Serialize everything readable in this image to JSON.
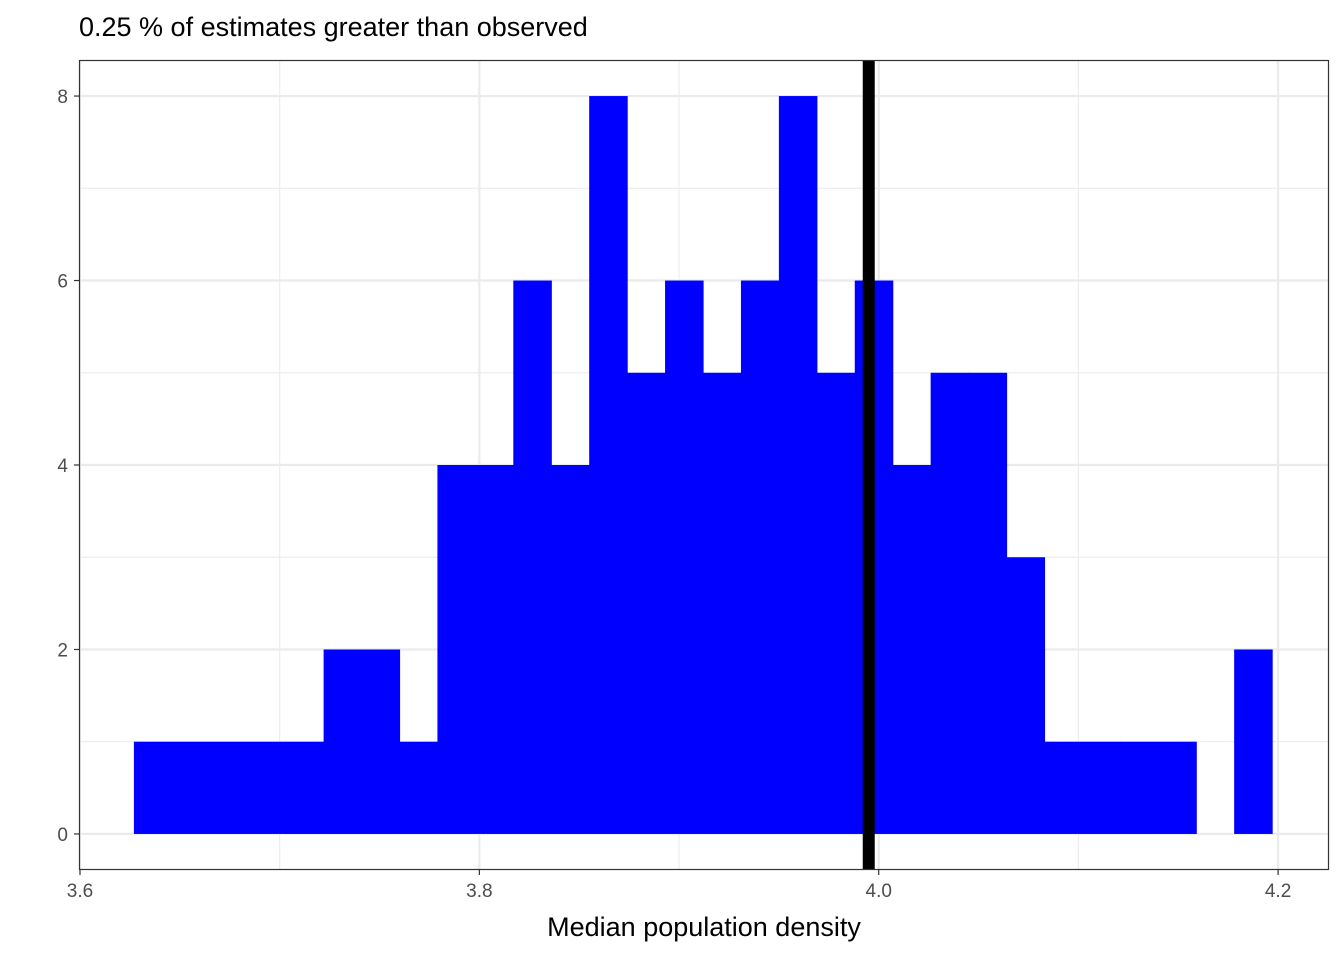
{
  "chart_data": {
    "type": "bar",
    "title": "0.25 % of estimates greater than observed",
    "xlabel": "Median population density",
    "ylabel": "",
    "xlim": [
      3.6,
      4.225
    ],
    "ylim": [
      -0.38,
      8.38
    ],
    "x_ticks": [
      "3.6",
      "3.8",
      "4.0",
      "4.2"
    ],
    "y_ticks": [
      "0",
      "2",
      "4",
      "6",
      "8"
    ],
    "bin_width": 0.019,
    "bins": [
      {
        "x_start": 3.627,
        "x_end": 3.646,
        "count": 1
      },
      {
        "x_start": 3.646,
        "x_end": 3.665,
        "count": 1
      },
      {
        "x_start": 3.665,
        "x_end": 3.684,
        "count": 1
      },
      {
        "x_start": 3.684,
        "x_end": 3.703,
        "count": 1
      },
      {
        "x_start": 3.703,
        "x_end": 3.722,
        "count": 1
      },
      {
        "x_start": 3.722,
        "x_end": 3.741,
        "count": 2
      },
      {
        "x_start": 3.741,
        "x_end": 3.76,
        "count": 2
      },
      {
        "x_start": 3.76,
        "x_end": 3.779,
        "count": 1
      },
      {
        "x_start": 3.779,
        "x_end": 3.798,
        "count": 4
      },
      {
        "x_start": 3.798,
        "x_end": 3.817,
        "count": 4
      },
      {
        "x_start": 3.817,
        "x_end": 3.836,
        "count": 6
      },
      {
        "x_start": 3.836,
        "x_end": 3.855,
        "count": 4
      },
      {
        "x_start": 3.855,
        "x_end": 3.874,
        "count": 8
      },
      {
        "x_start": 3.874,
        "x_end": 3.893,
        "count": 5
      },
      {
        "x_start": 3.893,
        "x_end": 3.912,
        "count": 6
      },
      {
        "x_start": 3.912,
        "x_end": 3.931,
        "count": 5
      },
      {
        "x_start": 3.931,
        "x_end": 3.95,
        "count": 6
      },
      {
        "x_start": 3.95,
        "x_end": 3.969,
        "count": 8
      },
      {
        "x_start": 3.969,
        "x_end": 3.988,
        "count": 5
      },
      {
        "x_start": 3.988,
        "x_end": 4.007,
        "count": 6
      },
      {
        "x_start": 4.007,
        "x_end": 4.026,
        "count": 4
      },
      {
        "x_start": 4.026,
        "x_end": 4.045,
        "count": 5
      },
      {
        "x_start": 4.045,
        "x_end": 4.064,
        "count": 5
      },
      {
        "x_start": 4.064,
        "x_end": 4.083,
        "count": 3
      },
      {
        "x_start": 4.083,
        "x_end": 4.102,
        "count": 1
      },
      {
        "x_start": 4.102,
        "x_end": 4.121,
        "count": 1
      },
      {
        "x_start": 4.121,
        "x_end": 4.14,
        "count": 1
      },
      {
        "x_start": 4.14,
        "x_end": 4.159,
        "count": 1
      },
      {
        "x_start": 4.159,
        "x_end": 4.178,
        "count": 0
      },
      {
        "x_start": 4.178,
        "x_end": 4.197,
        "count": 2
      }
    ],
    "observed_line": {
      "x": 3.995,
      "color": "#000000"
    },
    "bar_color": "#0000ff",
    "grid": true,
    "legend": "none"
  }
}
